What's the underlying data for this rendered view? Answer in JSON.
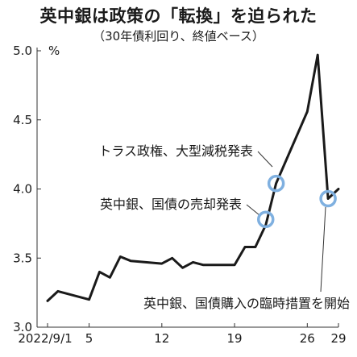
{
  "title": "英中銀は政策の「転換」を迫られた",
  "subtitle": "（30年債利回り、終値ベース）",
  "chart_data": {
    "type": "line",
    "unit": "%",
    "ylim": [
      3.0,
      5.0
    ],
    "yticks": [
      3.0,
      3.5,
      4.0,
      4.5,
      5.0
    ],
    "ytick_labels": [
      "3.0",
      "3.5",
      "4.0",
      "4.5",
      "5.0"
    ],
    "xlim": [
      "2022-09-01",
      "2022-09-29"
    ],
    "xtick_labels": [
      {
        "date": "2022-09-01",
        "label": "2022/9/1"
      },
      {
        "date": "2022-09-05",
        "label": "5"
      },
      {
        "date": "2022-09-12",
        "label": "12"
      },
      {
        "date": "2022-09-19",
        "label": "19"
      },
      {
        "date": "2022-09-26",
        "label": "26"
      },
      {
        "date": "2022-09-29",
        "label": "29"
      }
    ],
    "grid": false,
    "line_color": "#1a1a1a",
    "highlight_color": "#7fb0e0",
    "series": [
      {
        "name": "",
        "points": [
          {
            "x": "2022-09-01",
            "y": 3.19
          },
          {
            "x": "2022-09-02",
            "y": 3.26
          },
          {
            "x": "2022-09-05",
            "y": 3.2
          },
          {
            "x": "2022-09-06",
            "y": 3.4
          },
          {
            "x": "2022-09-07",
            "y": 3.36
          },
          {
            "x": "2022-09-08",
            "y": 3.51
          },
          {
            "x": "2022-09-09",
            "y": 3.48
          },
          {
            "x": "2022-09-12",
            "y": 3.46
          },
          {
            "x": "2022-09-13",
            "y": 3.5
          },
          {
            "x": "2022-09-14",
            "y": 3.43
          },
          {
            "x": "2022-09-15",
            "y": 3.47
          },
          {
            "x": "2022-09-16",
            "y": 3.45
          },
          {
            "x": "2022-09-19",
            "y": 3.45
          },
          {
            "x": "2022-09-20",
            "y": 3.58
          },
          {
            "x": "2022-09-21",
            "y": 3.58
          },
          {
            "x": "2022-09-22",
            "y": 3.74
          },
          {
            "x": "2022-09-23",
            "y": 4.04
          },
          {
            "x": "2022-09-26",
            "y": 4.56
          },
          {
            "x": "2022-09-27",
            "y": 4.97
          },
          {
            "x": "2022-09-28",
            "y": 3.93
          },
          {
            "x": "2022-09-29",
            "y": 4.0
          }
        ]
      }
    ],
    "annotations": [
      {
        "text": "トラス政権、大型減税発表",
        "date": "2022-09-23",
        "y": 4.04
      },
      {
        "text": "英中銀、国債の売却発表",
        "date": "2022-09-22",
        "y": 3.78
      },
      {
        "text": "英中銀、国債購入の臨時措置を開始",
        "date": "2022-09-28",
        "y": 3.93
      }
    ]
  }
}
